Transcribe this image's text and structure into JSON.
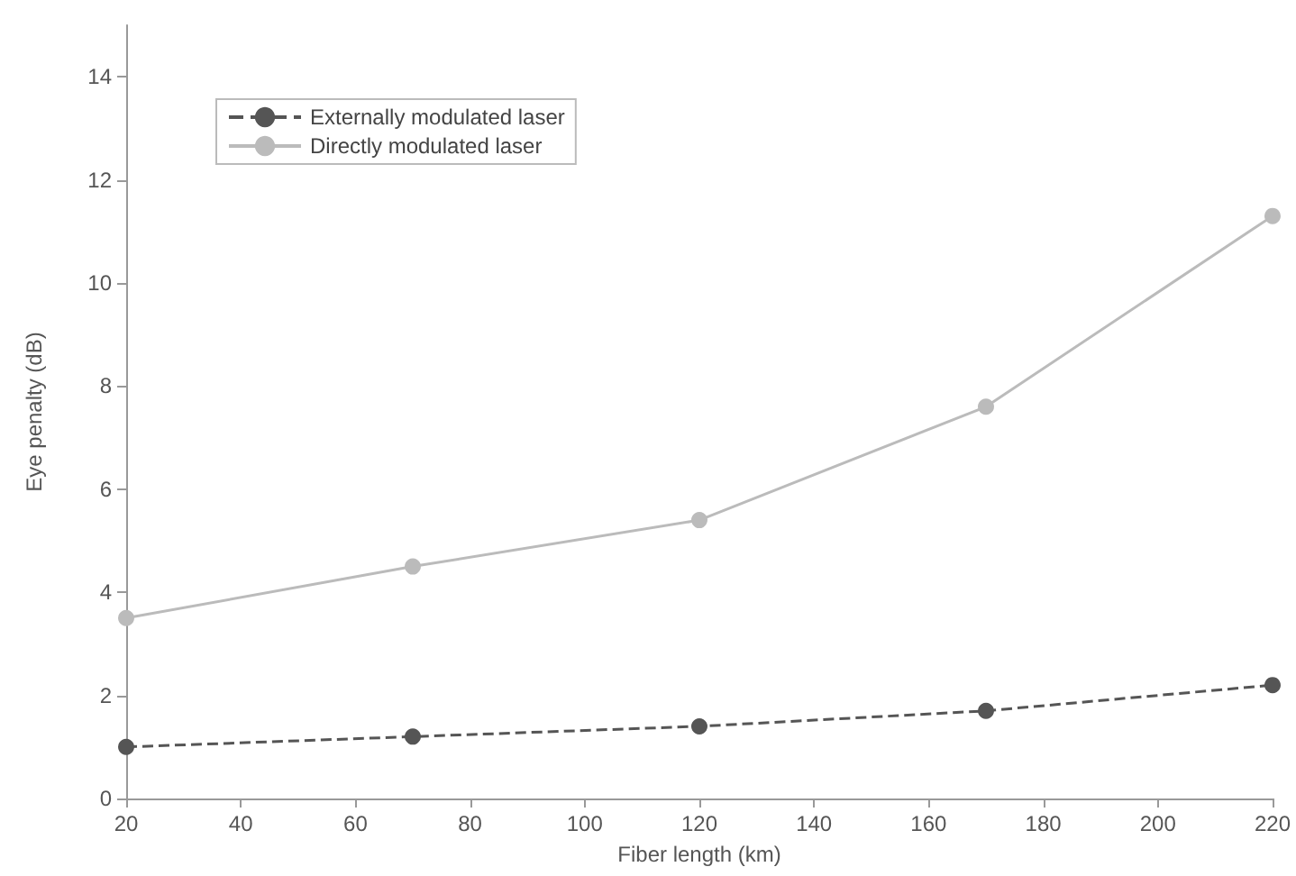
{
  "chart_data": {
    "type": "line",
    "xlabel": "Fiber length (km)",
    "ylabel": "Eye penalty (dB)",
    "x": [
      20,
      70,
      120,
      170,
      220
    ],
    "series": [
      {
        "name": "Externally modulated laser",
        "color": "#555555",
        "values": [
          1.0,
          1.2,
          1.4,
          1.7,
          2.2
        ],
        "line_style": "dashed"
      },
      {
        "name": "Directly modulated laser",
        "color": "#bbbbbb",
        "values": [
          3.5,
          4.5,
          5.4,
          7.6,
          11.3
        ],
        "line_style": "solid"
      }
    ],
    "xlim": [
      20,
      220
    ],
    "xticks": [
      20,
      40,
      60,
      80,
      100,
      120,
      140,
      160,
      180,
      200,
      220
    ],
    "ylim": [
      0,
      15
    ],
    "yticks": [
      0,
      2,
      4,
      6,
      8,
      10,
      12,
      14
    ],
    "grid": false,
    "legend": "top left",
    "marker": "circle"
  }
}
